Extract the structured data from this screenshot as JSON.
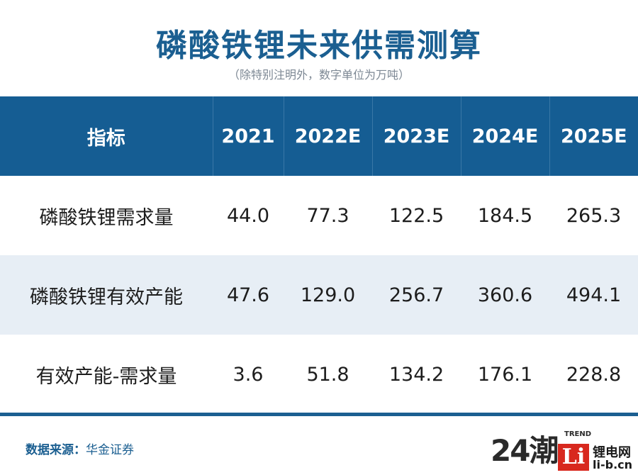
{
  "title": "磷酸铁锂未来供需测算",
  "subtitle": "（除特别注明外，数字单位为万吨）",
  "table": {
    "headers": [
      "指标",
      "2021",
      "2022E",
      "2023E",
      "2024E",
      "2025E"
    ],
    "rows": [
      {
        "label": "磷酸铁锂需求量",
        "values": [
          "44.0",
          "77.3",
          "122.5",
          "184.5",
          "265.3"
        ]
      },
      {
        "label": "磷酸铁锂有效产能",
        "values": [
          "47.6",
          "129.0",
          "256.7",
          "360.6",
          "494.1"
        ]
      },
      {
        "label": "有效产能-需求量",
        "values": [
          "3.6",
          "51.8",
          "134.2",
          "176.1",
          "228.8"
        ]
      }
    ]
  },
  "source": {
    "label": "数据来源：",
    "value": "华金证券"
  },
  "watermark": {
    "mark": "24潮",
    "trend": "TREND",
    "logo": "Li",
    "cn": "锂电网",
    "domain": "li-b.cn"
  },
  "colors": {
    "brand_blue": "#155d93",
    "row_alt": "#e7eef5",
    "logo_red": "#d8281e"
  }
}
